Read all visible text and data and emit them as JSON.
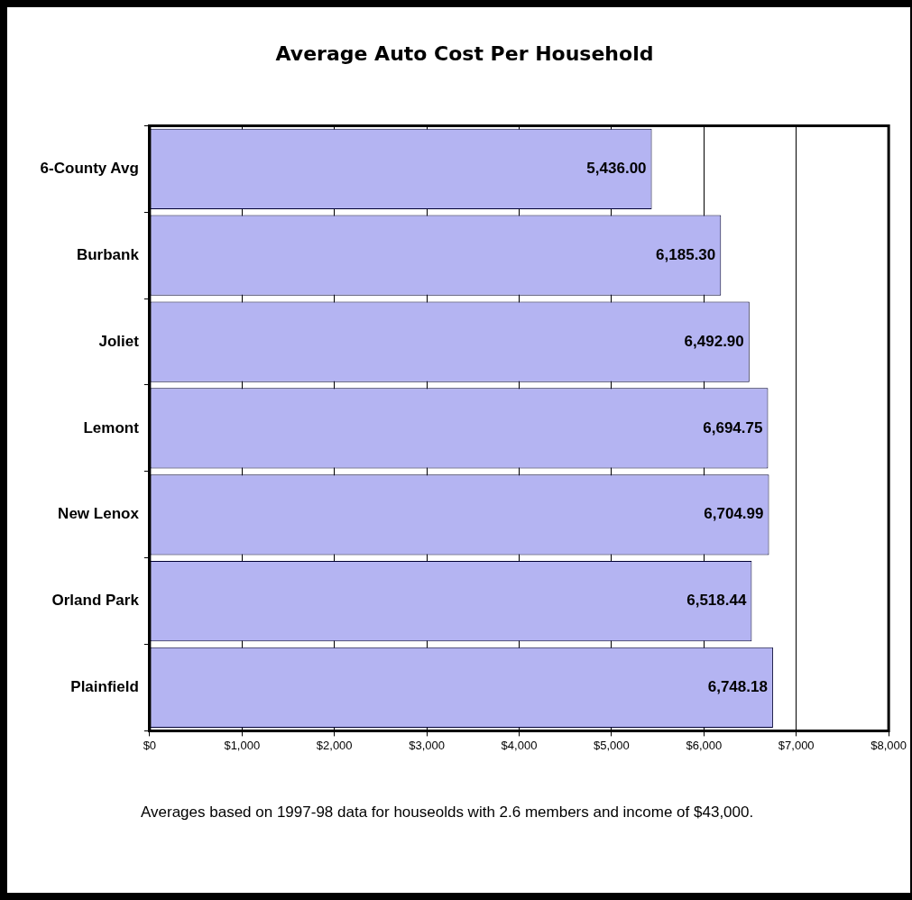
{
  "chart_data": {
    "type": "bar",
    "orientation": "horizontal",
    "title": "Average Auto Cost Per Household",
    "categories": [
      "6-County Avg",
      "Burbank",
      "Joliet",
      "Lemont",
      "New Lenox",
      "Orland Park",
      "Plainfield"
    ],
    "values": [
      5436.0,
      6185.3,
      6492.9,
      6694.75,
      6704.99,
      6518.44,
      6748.18
    ],
    "value_labels": [
      "5,436.00",
      "6,185.30",
      "6,492.90",
      "6,694.75",
      "6,704.99",
      "6,518.44",
      "6,748.18"
    ],
    "color": "#b4b4f2",
    "xlim": [
      0,
      8000
    ],
    "xticks": [
      {
        "value": 0,
        "label": "$0"
      },
      {
        "value": 1000,
        "label": "$1,000"
      },
      {
        "value": 2000,
        "label": "$2,000"
      },
      {
        "value": 3000,
        "label": "$3,000"
      },
      {
        "value": 4000,
        "label": "$4,000"
      },
      {
        "value": 5000,
        "label": "$5,000"
      },
      {
        "value": 6000,
        "label": "$6,000"
      },
      {
        "value": 7000,
        "label": "$7,000"
      },
      {
        "value": 8000,
        "label": "$8,000"
      }
    ],
    "grid": "x",
    "legend": false,
    "annotations": [
      "Averages based on 1997-98 data for houseolds with 2.6 members and income of $43,000."
    ]
  }
}
